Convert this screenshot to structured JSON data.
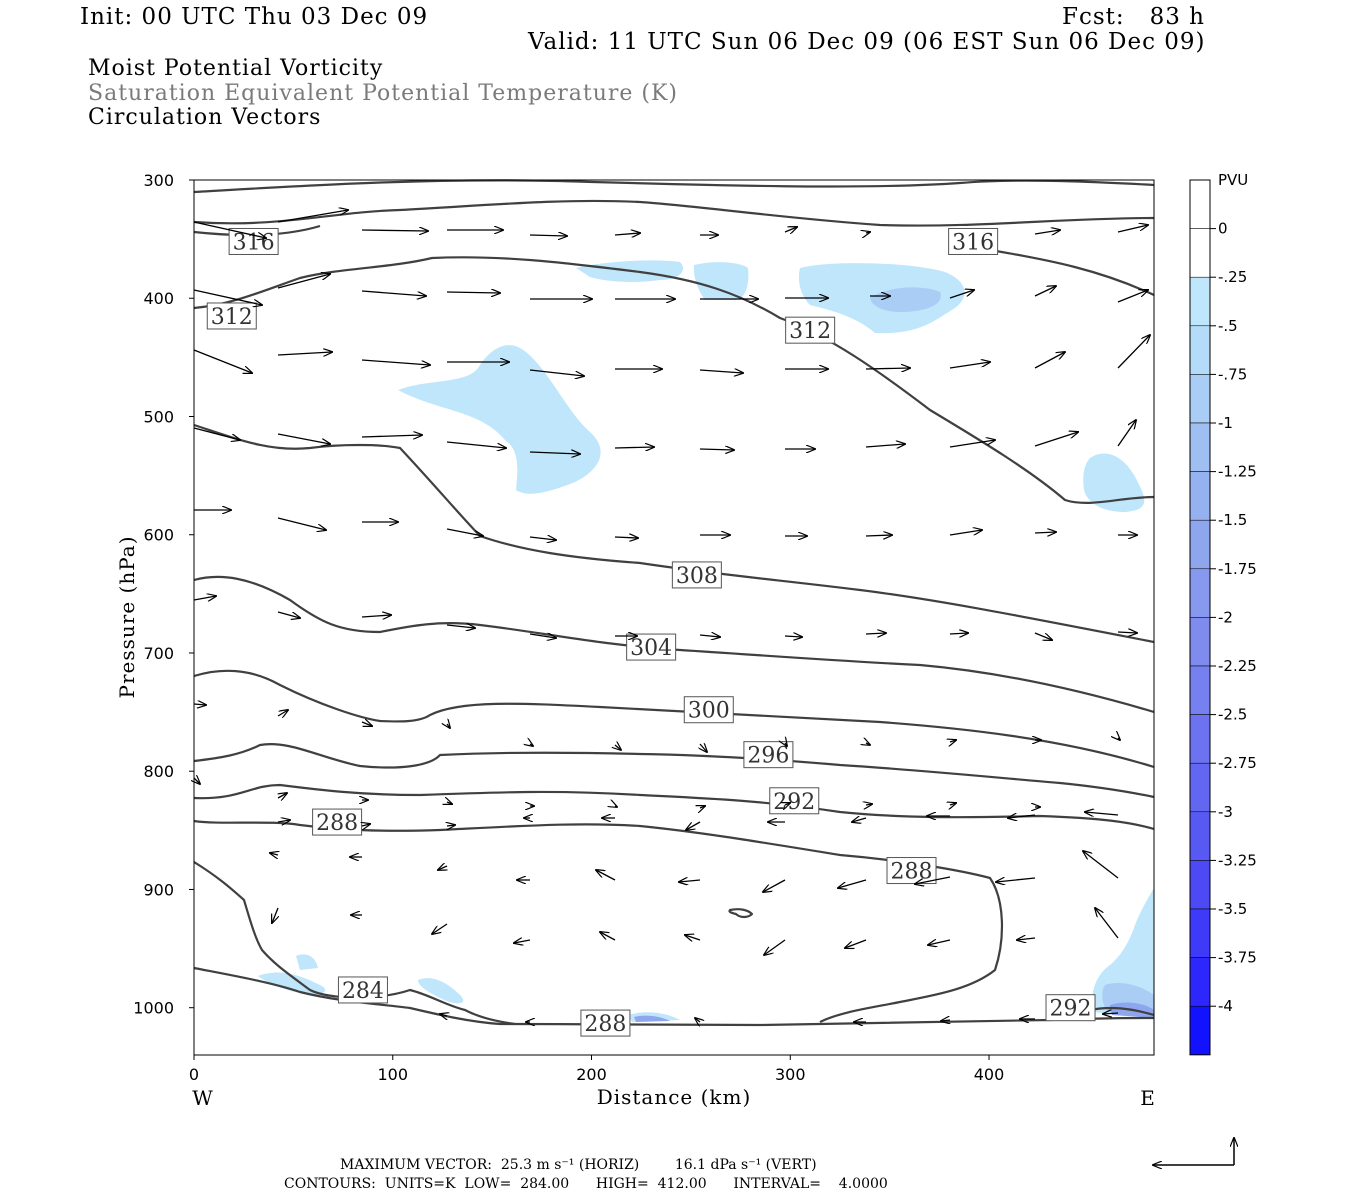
{
  "header": {
    "init": "Init: 00 UTC Thu 03 Dec 09",
    "fcst": "Fcst:   83 h",
    "valid": "Valid: 11 UTC Sun 06 Dec 09 (06 EST Sun 06 Dec 09)",
    "field1": "Moist Potential Vorticity",
    "field2": "Saturation Equivalent Potential Temperature (K)",
    "field3": "Circulation Vectors"
  },
  "footer": {
    "maxvec": "MAXIMUM VECTOR:  25.3 m s⁻¹ (HORIZ)        16.1 dPa s⁻¹ (VERT)",
    "contours": "CONTOURS:  UNITS=K  LOW=  284.00      HIGH=  412.00      INTERVAL=    4.0000"
  },
  "colors": {
    "contour": "#404040",
    "pv_025": "#bfe6fb",
    "pv_050": "#a9cdf5",
    "pv_100": "#8ea6ee"
  },
  "chart_data": {
    "type": "cross-section",
    "xlabel": "Distance (km)",
    "ylabel": "Pressure (hPa)",
    "west_label": "W",
    "east_label": "E",
    "xlim": [
      0,
      483
    ],
    "ylim": [
      1040,
      300
    ],
    "x_ticks": [
      0,
      100,
      200,
      300,
      400
    ],
    "y_ticks": [
      300,
      400,
      500,
      600,
      700,
      800,
      900,
      1000
    ],
    "colorbar": {
      "unit": "PVU",
      "levels": [
        "0",
        "-.25",
        "-.5",
        "-.75",
        "-1",
        "-1.25",
        "-1.5",
        "-1.75",
        "-2",
        "-2.25",
        "-2.5",
        "-2.75",
        "-3",
        "-3.25",
        "-3.5",
        "-3.75",
        "-4"
      ],
      "colors": [
        "#ffffff",
        "#ffffff",
        "#bfe6fb",
        "#b4dbf8",
        "#a9cdf5",
        "#9fbef2",
        "#96b1ef",
        "#8ea6ee",
        "#8799ee",
        "#7f8cee",
        "#7680ef",
        "#6d73f0",
        "#6366f1",
        "#5858f3",
        "#4d4af5",
        "#3f3af8",
        "#2e27fb",
        "#1212ff"
      ]
    },
    "contour_labels": [
      {
        "value": "316",
        "x": 30,
        "p": 352
      },
      {
        "value": "316",
        "x": 392,
        "p": 352
      },
      {
        "value": "312",
        "x": 19,
        "p": 415
      },
      {
        "value": "312",
        "x": 310,
        "p": 427
      },
      {
        "value": "308",
        "x": 253,
        "p": 634
      },
      {
        "value": "304",
        "x": 230,
        "p": 695
      },
      {
        "value": "300",
        "x": 259,
        "p": 748
      },
      {
        "value": "296",
        "x": 289,
        "p": 786
      },
      {
        "value": "292",
        "x": 302,
        "p": 825
      },
      {
        "value": "288",
        "x": 72,
        "p": 843
      },
      {
        "value": "288",
        "x": 361,
        "p": 884
      },
      {
        "value": "284",
        "x": 85,
        "p": 985
      },
      {
        "value": "288",
        "x": 207,
        "p": 1013
      },
      {
        "value": "292",
        "x": 441,
        "p": 1000
      }
    ]
  }
}
